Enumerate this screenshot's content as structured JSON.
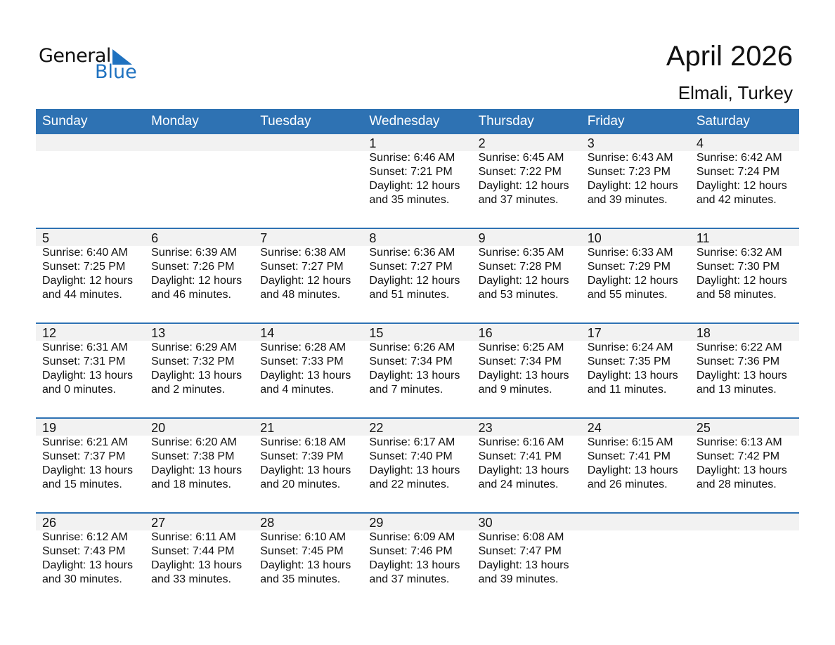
{
  "logo": {
    "general": "General",
    "blue": "Blue",
    "color": "#1f72c0"
  },
  "title": "April 2026",
  "location": "Elmali, Turkey",
  "header_color": "#2e72b3",
  "weekdays": [
    "Sunday",
    "Monday",
    "Tuesday",
    "Wednesday",
    "Thursday",
    "Friday",
    "Saturday"
  ],
  "weeks": [
    [
      null,
      null,
      null,
      {
        "day": "1",
        "sunrise": "Sunrise: 6:46 AM",
        "sunset": "Sunset: 7:21 PM",
        "daylight": "Daylight: 12 hours",
        "minutes": "and 35 minutes."
      },
      {
        "day": "2",
        "sunrise": "Sunrise: 6:45 AM",
        "sunset": "Sunset: 7:22 PM",
        "daylight": "Daylight: 12 hours",
        "minutes": "and 37 minutes."
      },
      {
        "day": "3",
        "sunrise": "Sunrise: 6:43 AM",
        "sunset": "Sunset: 7:23 PM",
        "daylight": "Daylight: 12 hours",
        "minutes": "and 39 minutes."
      },
      {
        "day": "4",
        "sunrise": "Sunrise: 6:42 AM",
        "sunset": "Sunset: 7:24 PM",
        "daylight": "Daylight: 12 hours",
        "minutes": "and 42 minutes."
      }
    ],
    [
      {
        "day": "5",
        "sunrise": "Sunrise: 6:40 AM",
        "sunset": "Sunset: 7:25 PM",
        "daylight": "Daylight: 12 hours",
        "minutes": "and 44 minutes."
      },
      {
        "day": "6",
        "sunrise": "Sunrise: 6:39 AM",
        "sunset": "Sunset: 7:26 PM",
        "daylight": "Daylight: 12 hours",
        "minutes": "and 46 minutes."
      },
      {
        "day": "7",
        "sunrise": "Sunrise: 6:38 AM",
        "sunset": "Sunset: 7:27 PM",
        "daylight": "Daylight: 12 hours",
        "minutes": "and 48 minutes."
      },
      {
        "day": "8",
        "sunrise": "Sunrise: 6:36 AM",
        "sunset": "Sunset: 7:27 PM",
        "daylight": "Daylight: 12 hours",
        "minutes": "and 51 minutes."
      },
      {
        "day": "9",
        "sunrise": "Sunrise: 6:35 AM",
        "sunset": "Sunset: 7:28 PM",
        "daylight": "Daylight: 12 hours",
        "minutes": "and 53 minutes."
      },
      {
        "day": "10",
        "sunrise": "Sunrise: 6:33 AM",
        "sunset": "Sunset: 7:29 PM",
        "daylight": "Daylight: 12 hours",
        "minutes": "and 55 minutes."
      },
      {
        "day": "11",
        "sunrise": "Sunrise: 6:32 AM",
        "sunset": "Sunset: 7:30 PM",
        "daylight": "Daylight: 12 hours",
        "minutes": "and 58 minutes."
      }
    ],
    [
      {
        "day": "12",
        "sunrise": "Sunrise: 6:31 AM",
        "sunset": "Sunset: 7:31 PM",
        "daylight": "Daylight: 13 hours",
        "minutes": "and 0 minutes."
      },
      {
        "day": "13",
        "sunrise": "Sunrise: 6:29 AM",
        "sunset": "Sunset: 7:32 PM",
        "daylight": "Daylight: 13 hours",
        "minutes": "and 2 minutes."
      },
      {
        "day": "14",
        "sunrise": "Sunrise: 6:28 AM",
        "sunset": "Sunset: 7:33 PM",
        "daylight": "Daylight: 13 hours",
        "minutes": "and 4 minutes."
      },
      {
        "day": "15",
        "sunrise": "Sunrise: 6:26 AM",
        "sunset": "Sunset: 7:34 PM",
        "daylight": "Daylight: 13 hours",
        "minutes": "and 7 minutes."
      },
      {
        "day": "16",
        "sunrise": "Sunrise: 6:25 AM",
        "sunset": "Sunset: 7:34 PM",
        "daylight": "Daylight: 13 hours",
        "minutes": "and 9 minutes."
      },
      {
        "day": "17",
        "sunrise": "Sunrise: 6:24 AM",
        "sunset": "Sunset: 7:35 PM",
        "daylight": "Daylight: 13 hours",
        "minutes": "and 11 minutes."
      },
      {
        "day": "18",
        "sunrise": "Sunrise: 6:22 AM",
        "sunset": "Sunset: 7:36 PM",
        "daylight": "Daylight: 13 hours",
        "minutes": "and 13 minutes."
      }
    ],
    [
      {
        "day": "19",
        "sunrise": "Sunrise: 6:21 AM",
        "sunset": "Sunset: 7:37 PM",
        "daylight": "Daylight: 13 hours",
        "minutes": "and 15 minutes."
      },
      {
        "day": "20",
        "sunrise": "Sunrise: 6:20 AM",
        "sunset": "Sunset: 7:38 PM",
        "daylight": "Daylight: 13 hours",
        "minutes": "and 18 minutes."
      },
      {
        "day": "21",
        "sunrise": "Sunrise: 6:18 AM",
        "sunset": "Sunset: 7:39 PM",
        "daylight": "Daylight: 13 hours",
        "minutes": "and 20 minutes."
      },
      {
        "day": "22",
        "sunrise": "Sunrise: 6:17 AM",
        "sunset": "Sunset: 7:40 PM",
        "daylight": "Daylight: 13 hours",
        "minutes": "and 22 minutes."
      },
      {
        "day": "23",
        "sunrise": "Sunrise: 6:16 AM",
        "sunset": "Sunset: 7:41 PM",
        "daylight": "Daylight: 13 hours",
        "minutes": "and 24 minutes."
      },
      {
        "day": "24",
        "sunrise": "Sunrise: 6:15 AM",
        "sunset": "Sunset: 7:41 PM",
        "daylight": "Daylight: 13 hours",
        "minutes": "and 26 minutes."
      },
      {
        "day": "25",
        "sunrise": "Sunrise: 6:13 AM",
        "sunset": "Sunset: 7:42 PM",
        "daylight": "Daylight: 13 hours",
        "minutes": "and 28 minutes."
      }
    ],
    [
      {
        "day": "26",
        "sunrise": "Sunrise: 6:12 AM",
        "sunset": "Sunset: 7:43 PM",
        "daylight": "Daylight: 13 hours",
        "minutes": "and 30 minutes."
      },
      {
        "day": "27",
        "sunrise": "Sunrise: 6:11 AM",
        "sunset": "Sunset: 7:44 PM",
        "daylight": "Daylight: 13 hours",
        "minutes": "and 33 minutes."
      },
      {
        "day": "28",
        "sunrise": "Sunrise: 6:10 AM",
        "sunset": "Sunset: 7:45 PM",
        "daylight": "Daylight: 13 hours",
        "minutes": "and 35 minutes."
      },
      {
        "day": "29",
        "sunrise": "Sunrise: 6:09 AM",
        "sunset": "Sunset: 7:46 PM",
        "daylight": "Daylight: 13 hours",
        "minutes": "and 37 minutes."
      },
      {
        "day": "30",
        "sunrise": "Sunrise: 6:08 AM",
        "sunset": "Sunset: 7:47 PM",
        "daylight": "Daylight: 13 hours",
        "minutes": "and 39 minutes."
      },
      null,
      null
    ]
  ]
}
